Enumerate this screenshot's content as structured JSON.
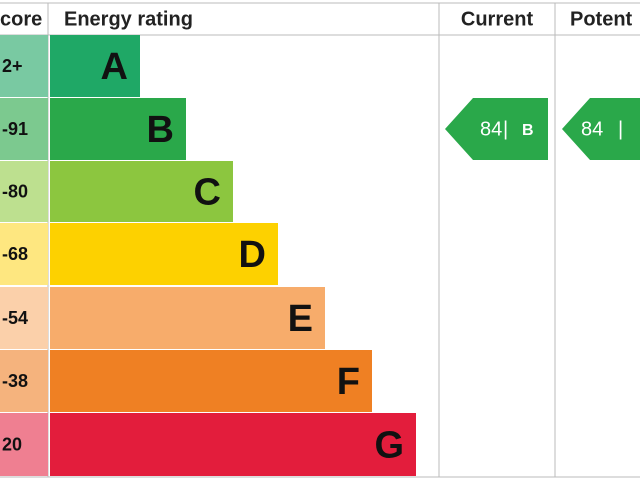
{
  "header": {
    "score": "core",
    "rating": "Energy rating",
    "current": "Current",
    "potential": "Potent"
  },
  "rows": [
    {
      "score": "2+",
      "letter": "A"
    },
    {
      "score": "-91",
      "letter": "B"
    },
    {
      "score": "-80",
      "letter": "C"
    },
    {
      "score": "-68",
      "letter": "D"
    },
    {
      "score": "-54",
      "letter": "E"
    },
    {
      "score": "-38",
      "letter": "F"
    },
    {
      "score": "20",
      "letter": "G"
    }
  ],
  "current": {
    "value": "84",
    "separator": "|",
    "letter": "B"
  },
  "potential": {
    "value": "84",
    "separator": "|"
  }
}
